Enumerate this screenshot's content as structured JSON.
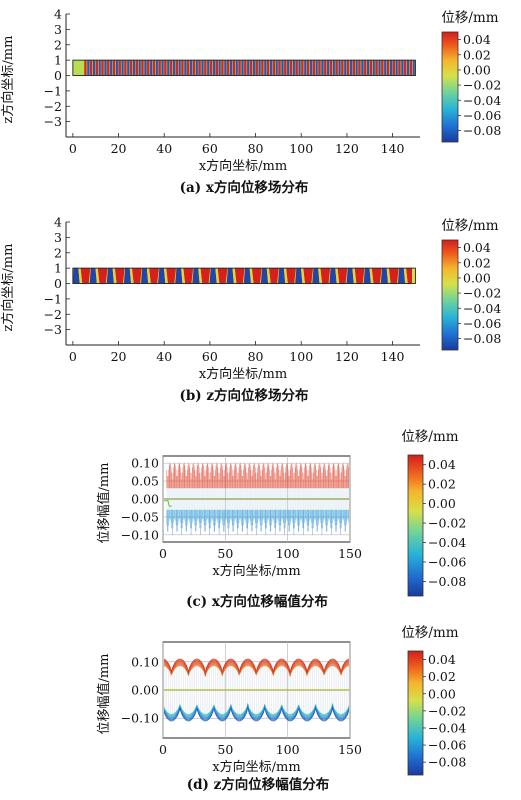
{
  "colorbar": {
    "title": "位移/mm",
    "ticks": [
      "0.04",
      "0.02",
      "0.00",
      "−0.02",
      "−0.04",
      "−0.06",
      "−0.08"
    ],
    "tick_values": [
      0.04,
      0.02,
      0.0,
      -0.02,
      -0.04,
      -0.06,
      -0.08
    ],
    "range": [
      -0.095,
      0.05
    ],
    "colors": [
      "#1a3a9e",
      "#1f6fd0",
      "#29b3d8",
      "#6fd39a",
      "#d6e04a",
      "#f5b62c",
      "#ee5a1c",
      "#d21e1e"
    ]
  },
  "chart_data": [
    {
      "type": "heatmap",
      "caption": "(a) x方向位移场分布",
      "xlabel": "x方向坐标/mm",
      "ylabel": "z方向坐标/mm",
      "xlim": [
        -3,
        152
      ],
      "ylim": [
        -4,
        4
      ],
      "xticks": [
        "0",
        "20",
        "40",
        "60",
        "80",
        "100",
        "120",
        "140"
      ],
      "yticks": [
        "4",
        "3",
        "2",
        "1",
        "0",
        "−1",
        "−2",
        "−3"
      ],
      "strip": {
        "x_range": [
          0,
          150
        ],
        "z_range": [
          0,
          1
        ]
      },
      "pattern": "fine alternating red/blue stripes (high-frequency x-displacement), green segment near x=0–5"
    },
    {
      "type": "heatmap",
      "caption": "(b) z方向位移场分布",
      "xlabel": "x方向坐标/mm",
      "ylabel": "z方向坐标/mm",
      "xlim": [
        -3,
        152
      ],
      "ylim": [
        -4,
        4
      ],
      "xticks": [
        "0",
        "20",
        "40",
        "60",
        "80",
        "100",
        "120",
        "140"
      ],
      "yticks": [
        "4",
        "3",
        "2",
        "1",
        "0",
        "−1",
        "−2",
        "−3"
      ],
      "strip": {
        "x_range": [
          0,
          150
        ],
        "z_range": [
          0,
          1
        ]
      },
      "pattern": "alternating red/blue trapezoids (~20 periods) with yellow-green transitions"
    },
    {
      "type": "line",
      "caption": "(c) x方向位移幅值分布",
      "xlabel": "x方向坐标/mm",
      "ylabel": "位移幅值/mm",
      "xlim": [
        0,
        150
      ],
      "ylim": [
        -0.12,
        0.12
      ],
      "xticks": [
        "0",
        "50",
        "100",
        "150"
      ],
      "yticks": [
        "0.10",
        "0.05",
        "0.00",
        "−0.05",
        "−0.10"
      ],
      "series": [
        {
          "kind": "envelope",
          "upper": 0.1,
          "lower": -0.1,
          "period": 7.5,
          "description": "high-frequency oscillation with spikes up to ±0.10"
        }
      ]
    },
    {
      "type": "line",
      "caption": "(d) z方向位移幅值分布",
      "xlabel": "x方向坐标/mm",
      "ylabel": "位移幅值/mm",
      "xlim": [
        0,
        150
      ],
      "ylim": [
        -0.17,
        0.17
      ],
      "xticks": [
        "0",
        "50",
        "100",
        "150"
      ],
      "yticks": [
        "0.10",
        "0.00",
        "−0.10"
      ],
      "series": [
        {
          "kind": "envelope",
          "upper": 0.11,
          "lower": -0.11,
          "period": 13.6,
          "description": "periodic waves peaking ~0.11 with crests in red and troughs in blue"
        }
      ]
    }
  ]
}
